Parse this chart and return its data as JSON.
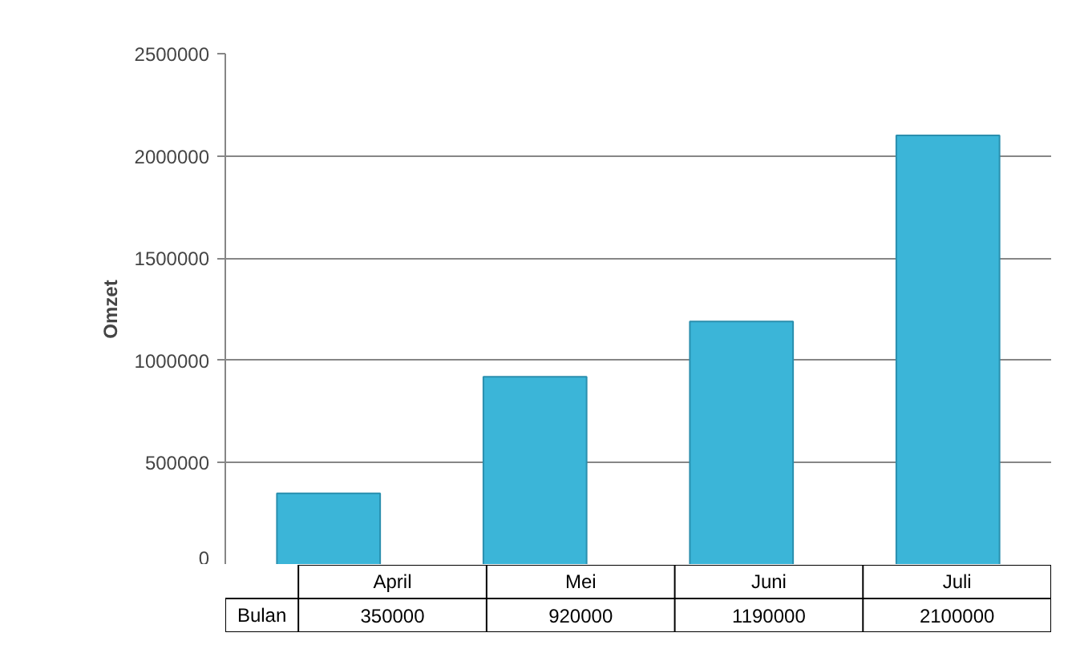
{
  "chart_data": {
    "type": "bar",
    "ylabel": "Omzet",
    "categories": [
      "April",
      "Mei",
      "Juni",
      "Juli"
    ],
    "series": [
      {
        "name": "Bulan",
        "color": "#3bb5d8",
        "values": [
          350000,
          920000,
          1190000,
          2100000
        ]
      }
    ],
    "ylim": [
      0,
      2500000
    ],
    "yticks": [
      0,
      500000,
      1000000,
      1500000,
      2000000,
      2500000
    ],
    "grid": "y",
    "data_labels": true
  }
}
